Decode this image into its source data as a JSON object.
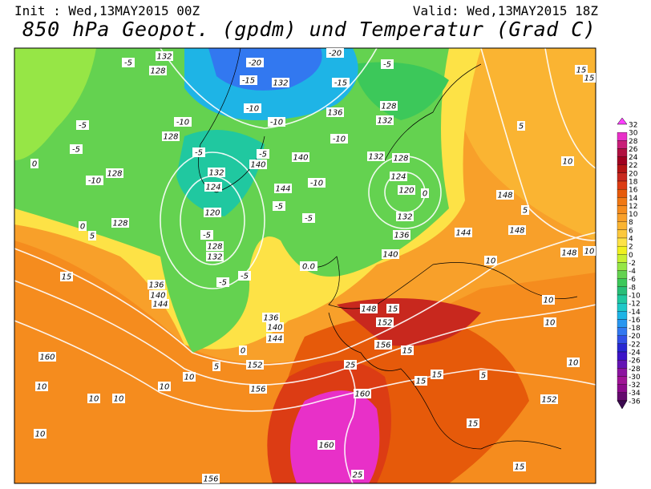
{
  "header": {
    "init": "Init : Wed,13MAY2015 00Z",
    "valid": "Valid: Wed,13MAY2015 18Z",
    "title": "850 hPa Geopot. (gpdm) und Temperatur (Grad C)"
  },
  "colorbar": {
    "labels": [
      "32",
      "30",
      "28",
      "26",
      "24",
      "22",
      "20",
      "18",
      "16",
      "14",
      "12",
      "10",
      "8",
      "6",
      "4",
      "2",
      "0",
      "-2",
      "-4",
      "-6",
      "-8",
      "-10",
      "-12",
      "-14",
      "-16",
      "-18",
      "-20",
      "-22",
      "-24",
      "-26",
      "-28",
      "-30",
      "-32",
      "-34",
      "-36"
    ],
    "colors": [
      "#ff40ff",
      "#e830c8",
      "#c81e78",
      "#b01040",
      "#a00020",
      "#b41414",
      "#c8281e",
      "#dc3c14",
      "#e65a0a",
      "#f07814",
      "#f58c1e",
      "#f8a02a",
      "#fab432",
      "#fcc83c",
      "#fde246",
      "#f0f01e",
      "#c8f032",
      "#96e646",
      "#64d250",
      "#3cc85a",
      "#28be78",
      "#20c8a0",
      "#1ec8c8",
      "#1eb4e6",
      "#2896f0",
      "#3278f0",
      "#3250e6",
      "#2828d2",
      "#3c14c8",
      "#6414b4",
      "#8c14a0",
      "#a01496",
      "#8c0a8c",
      "#640a6e",
      "#3c0a50"
    ]
  },
  "map": {
    "labels": [
      "132",
      "128",
      "-5",
      "-20",
      "-20",
      "-15",
      "132",
      "-15",
      "-5",
      "128",
      "136",
      "132",
      "-10",
      "-10",
      "-10",
      "128",
      "-5",
      "-5",
      "128",
      "-5",
      "132",
      "-5",
      "140",
      "140",
      "-10",
      "132",
      "128",
      "124",
      "120",
      "0",
      "-10",
      "144",
      "124",
      "120",
      "-5",
      "128",
      "132",
      "-5",
      "-5",
      "132",
      "136",
      "140",
      "144",
      "-10",
      "0",
      "0",
      "5",
      "128",
      "0.0",
      "-5",
      "-5",
      "136",
      "140",
      "144",
      "15",
      "136",
      "140",
      "144",
      "0",
      "5",
      "152",
      "148",
      "15",
      "152",
      "156",
      "15",
      "25",
      "160",
      "15",
      "156",
      "10",
      "10",
      "160",
      "10",
      "10",
      "10",
      "10",
      "160",
      "25",
      "156",
      "15",
      "15",
      "152",
      "5",
      "15",
      "10",
      "10",
      "10",
      "148",
      "10",
      "148",
      "148",
      "10",
      "5",
      "5",
      "15",
      "15",
      "10"
    ]
  }
}
